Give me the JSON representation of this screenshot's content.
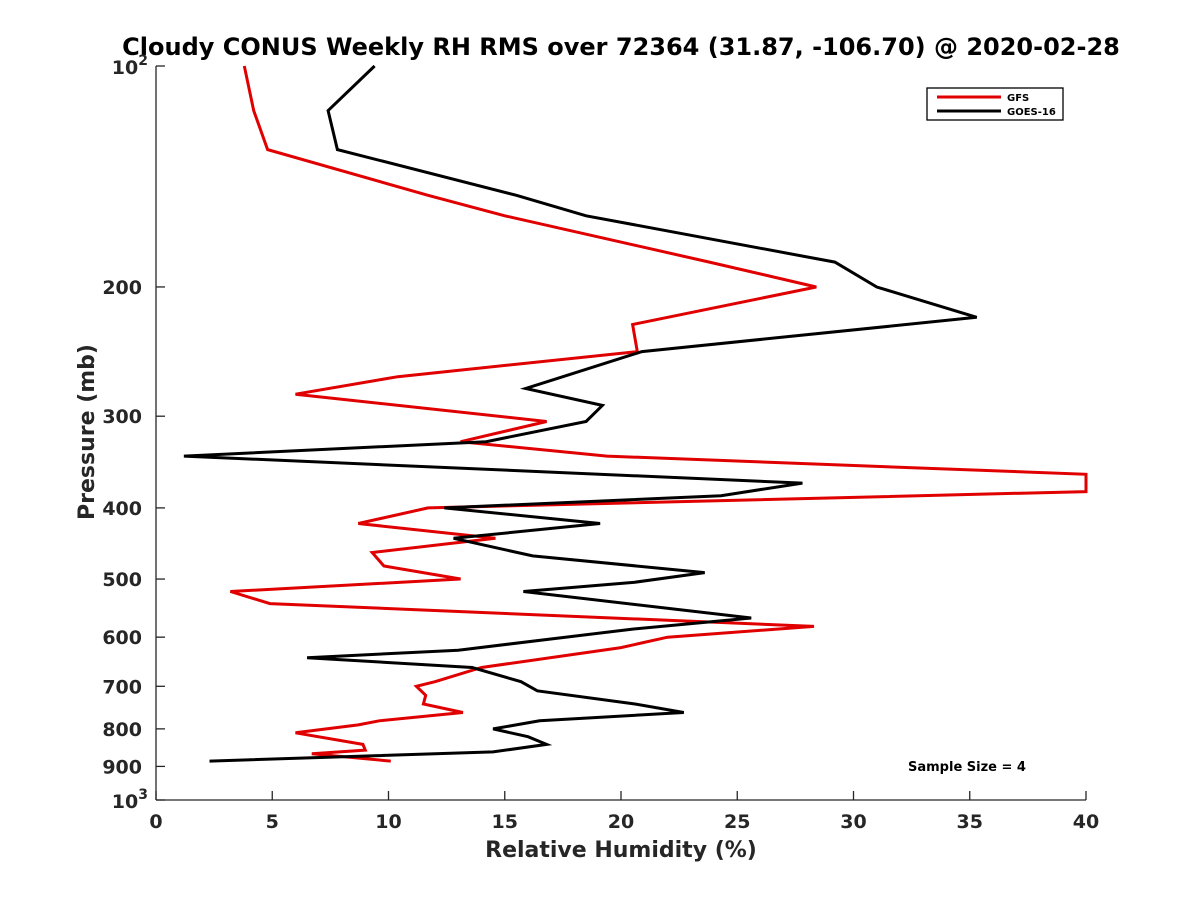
{
  "chart_data": {
    "type": "line",
    "title": "Cloudy CONUS Weekly RH RMS over 72364 (31.87, -106.70) @ 2020-02-28",
    "xlabel": "Relative Humidity (%)",
    "ylabel": "Pressure (mb)",
    "xlim": [
      0,
      40
    ],
    "ylim": [
      100,
      1000
    ],
    "y_scale": "log",
    "y_reversed": true,
    "grid": false,
    "legend_position": "top-right",
    "annotation": "Sample Size = 4",
    "x_ticks": [
      "0",
      "5",
      "10",
      "15",
      "20",
      "25",
      "30",
      "35",
      "40"
    ],
    "y_ticks": [
      {
        "value": 100,
        "base": "10",
        "exp": "2",
        "label": ""
      },
      {
        "value": 200,
        "label": "200"
      },
      {
        "value": 300,
        "label": "300"
      },
      {
        "value": 400,
        "label": "400"
      },
      {
        "value": 500,
        "label": "500"
      },
      {
        "value": 600,
        "label": "600"
      },
      {
        "value": 700,
        "label": "700"
      },
      {
        "value": 800,
        "label": "800"
      },
      {
        "value": 900,
        "label": "900"
      },
      {
        "value": 1000,
        "base": "10",
        "exp": "3",
        "label": ""
      }
    ],
    "series": [
      {
        "name": "GFS",
        "color": "#e00000",
        "points": [
          [
            3.8,
            100
          ],
          [
            4.2,
            115
          ],
          [
            4.8,
            130
          ],
          [
            11.7,
            150
          ],
          [
            15,
            160
          ],
          [
            23.8,
            185
          ],
          [
            28.4,
            200
          ],
          [
            20.5,
            225
          ],
          [
            20.7,
            245
          ],
          [
            10.4,
            265
          ],
          [
            6.0,
            280
          ],
          [
            16.8,
            305
          ],
          [
            13.1,
            325
          ],
          [
            19.4,
            340
          ],
          [
            40,
            360
          ],
          [
            40,
            380
          ],
          [
            11.7,
            400
          ],
          [
            8.7,
            420
          ],
          [
            14.6,
            440
          ],
          [
            9.3,
            460
          ],
          [
            9.8,
            480
          ],
          [
            13.1,
            500
          ],
          [
            3.2,
            520
          ],
          [
            4.9,
            540
          ],
          [
            28.3,
            580
          ],
          [
            22.0,
            600
          ],
          [
            20.0,
            620
          ],
          [
            14.0,
            660
          ],
          [
            12.0,
            690
          ],
          [
            11.2,
            700
          ],
          [
            11.6,
            720
          ],
          [
            11.5,
            740
          ],
          [
            13.2,
            760
          ],
          [
            9.6,
            780
          ],
          [
            8.7,
            790
          ],
          [
            6.0,
            810
          ],
          [
            8.9,
            840
          ],
          [
            9.0,
            855
          ],
          [
            6.7,
            865
          ],
          [
            10.1,
            885
          ]
        ]
      },
      {
        "name": "GOES-16",
        "color": "#000000",
        "points": [
          [
            9.4,
            100
          ],
          [
            7.4,
            115
          ],
          [
            7.8,
            130
          ],
          [
            15.5,
            150
          ],
          [
            18.5,
            160
          ],
          [
            29.2,
            185
          ],
          [
            31.0,
            200
          ],
          [
            35.3,
            220
          ],
          [
            20.9,
            245
          ],
          [
            15.9,
            275
          ],
          [
            19.2,
            290
          ],
          [
            18.5,
            305
          ],
          [
            14.2,
            325
          ],
          [
            1.2,
            340
          ],
          [
            27.8,
            370
          ],
          [
            24.3,
            385
          ],
          [
            12.4,
            400
          ],
          [
            19.1,
            420
          ],
          [
            12.8,
            440
          ],
          [
            16.2,
            465
          ],
          [
            23.6,
            490
          ],
          [
            20.6,
            505
          ],
          [
            15.8,
            520
          ],
          [
            25.6,
            565
          ],
          [
            20.5,
            585
          ],
          [
            13.0,
            625
          ],
          [
            6.5,
            640
          ],
          [
            13.6,
            660
          ],
          [
            15.7,
            690
          ],
          [
            16.4,
            710
          ],
          [
            20.6,
            740
          ],
          [
            22.7,
            760
          ],
          [
            16.5,
            780
          ],
          [
            14.5,
            800
          ],
          [
            16.0,
            820
          ],
          [
            16.8,
            840
          ],
          [
            14.5,
            860
          ],
          [
            2.3,
            885
          ]
        ]
      }
    ]
  }
}
